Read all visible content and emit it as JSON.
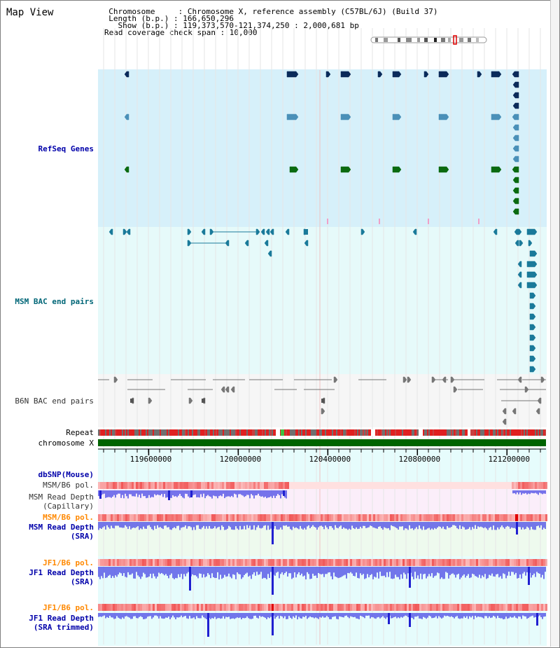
{
  "app": {
    "title": "Map View"
  },
  "info": {
    "lines": [
      "  Chromosome     : Chromosome X, reference assembly (C57BL/6J) (Build 37)",
      "  Length (b.p.) : 166,650,296",
      "    Show (b.p.) : 119,373,570-121,374,250 : 2,000,681 bp",
      "Read coverage check span : 10,000"
    ]
  },
  "tracks": [
    {
      "id": "refseq",
      "label": "RefSeq Genes",
      "color": "#0000aa"
    },
    {
      "id": "msm_bac",
      "label": "MSM BAC end pairs",
      "color": "#006677"
    },
    {
      "id": "b6n_bac",
      "label": "B6N BAC end pairs",
      "color": "#333333"
    },
    {
      "id": "repeat",
      "label": "Repeat",
      "color": "#000000"
    },
    {
      "id": "chrom",
      "label": "chromosome X",
      "color": "#000000"
    },
    {
      "id": "dbsnp",
      "label": "dbSNP(Mouse)",
      "color": "#0000aa"
    },
    {
      "id": "msm_pol1",
      "label": "MSM/B6 pol.",
      "color": "#333333"
    },
    {
      "id": "msm_depth_cap",
      "label": "MSM Read Depth\n(Capillary)",
      "color": "#333333"
    },
    {
      "id": "msm_pol2",
      "label": "MSM/B6 pol.",
      "color": "#ff8800"
    },
    {
      "id": "msm_depth_sra",
      "label": "MSM Read Depth\n(SRA)",
      "color": "#0000aa"
    },
    {
      "id": "jf1_pol1",
      "label": "JF1/B6 pol.",
      "color": "#ff8800"
    },
    {
      "id": "jf1_depth_sra",
      "label": "JF1 Read Depth\n(SRA)",
      "color": "#0000aa"
    },
    {
      "id": "jf1_pol2",
      "label": "JF1/B6 pol.",
      "color": "#ff8800"
    },
    {
      "id": "jf1_depth_trim",
      "label": "JF1 Read Depth\n(SRA trimmed)",
      "color": "#0000aa"
    }
  ],
  "axis": {
    "ticks": [
      119600000,
      120000000,
      120400000,
      120800000,
      121200000
    ],
    "tick_labels": [
      "119600000",
      "120000000",
      "120400000",
      "120800000",
      "121200000"
    ],
    "range": [
      119373570,
      121374250
    ]
  },
  "colors": {
    "refseq_bg": "#d6f0fa",
    "msm_bg": "#e6fafa",
    "b6n_bg": "#f4f4f4",
    "lower_bg": "#e6fcfc",
    "pink_bg": "#fbeefa",
    "green_bg": "#eefaee",
    "gene_dark": "#0a2a5a",
    "gene_mid": "#4a90b8",
    "gene_green": "#0a6a10",
    "msm_bac": "#1a7a9a",
    "chrom": "#006400",
    "repeat_red": "#e02020",
    "repeat_gray": "#707070",
    "depth_blue": "#4a4ae6",
    "pol_red": "#f05050"
  }
}
